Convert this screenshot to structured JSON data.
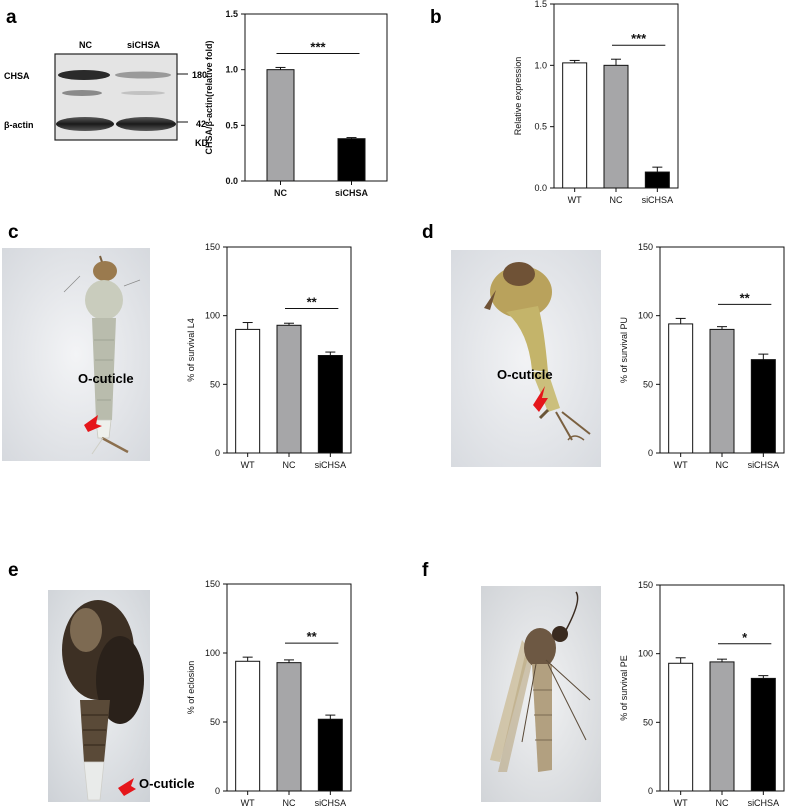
{
  "panels": {
    "a": "a",
    "b": "b",
    "c": "c",
    "d": "d",
    "e": "e",
    "f": "f"
  },
  "blot": {
    "lanes": [
      "NC",
      "siCHSA"
    ],
    "rows": [
      "CHSA",
      "β-actin"
    ],
    "markers": [
      "180",
      "42"
    ],
    "unit": "KD"
  },
  "photo_annotation": "O-cuticle",
  "colors": {
    "WT": "#ffffff",
    "NC": "#a6a6a8",
    "siCHSA": "#000000"
  },
  "chart_data": [
    {
      "id": "a",
      "type": "bar",
      "categories": [
        "NC",
        "siCHSA"
      ],
      "values": [
        1.0,
        0.38
      ],
      "errors": [
        0.02,
        0.01
      ],
      "ylabel": "CHSA/β-actin(relative fold)",
      "ylim": [
        0,
        1.5
      ],
      "yticks": [
        "0.0",
        "0.5",
        "1.0",
        "1.5"
      ],
      "significance": {
        "label": "***",
        "between": [
          "NC",
          "siCHSA"
        ]
      }
    },
    {
      "id": "b",
      "type": "bar",
      "categories": [
        "WT",
        "NC",
        "siCHSA"
      ],
      "values": [
        1.02,
        1.0,
        0.13
      ],
      "errors": [
        0.02,
        0.05,
        0.04
      ],
      "ylabel": "Relative expression",
      "ylim": [
        0,
        1.5
      ],
      "yticks": [
        "0.0",
        "0.5",
        "1.0",
        "1.5"
      ],
      "significance": {
        "label": "***",
        "between": [
          "NC",
          "siCHSA"
        ]
      }
    },
    {
      "id": "c",
      "type": "bar",
      "categories": [
        "WT",
        "NC",
        "siCHSA"
      ],
      "values": [
        90,
        93,
        71
      ],
      "errors": [
        5,
        1.5,
        2.5
      ],
      "ylabel": "% of survival L4",
      "ylim": [
        0,
        150
      ],
      "yticks": [
        "0",
        "50",
        "100",
        "150"
      ],
      "significance": {
        "label": "**",
        "between": [
          "NC",
          "siCHSA"
        ]
      }
    },
    {
      "id": "d",
      "type": "bar",
      "categories": [
        "WT",
        "NC",
        "siCHSA"
      ],
      "values": [
        94,
        90,
        68
      ],
      "errors": [
        4,
        2,
        4
      ],
      "ylabel": "% of survival PU",
      "ylim": [
        0,
        150
      ],
      "yticks": [
        "0",
        "50",
        "100",
        "150"
      ],
      "significance": {
        "label": "**",
        "between": [
          "NC",
          "siCHSA"
        ]
      }
    },
    {
      "id": "e",
      "type": "bar",
      "categories": [
        "WT",
        "NC",
        "siCHSA"
      ],
      "values": [
        94,
        93,
        52
      ],
      "errors": [
        3,
        2,
        3
      ],
      "ylabel": "% of eclosion",
      "ylim": [
        0,
        150
      ],
      "yticks": [
        "0",
        "50",
        "100",
        "150"
      ],
      "significance": {
        "label": "**",
        "between": [
          "NC",
          "siCHSA"
        ]
      }
    },
    {
      "id": "f",
      "type": "bar",
      "categories": [
        "WT",
        "NC",
        "siCHSA"
      ],
      "values": [
        93,
        94,
        82
      ],
      "errors": [
        4,
        2,
        2
      ],
      "ylabel": "% of survival PE",
      "ylim": [
        0,
        150
      ],
      "yticks": [
        "0",
        "50",
        "100",
        "150"
      ],
      "significance": {
        "label": "*",
        "between": [
          "NC",
          "siCHSA"
        ]
      }
    }
  ]
}
